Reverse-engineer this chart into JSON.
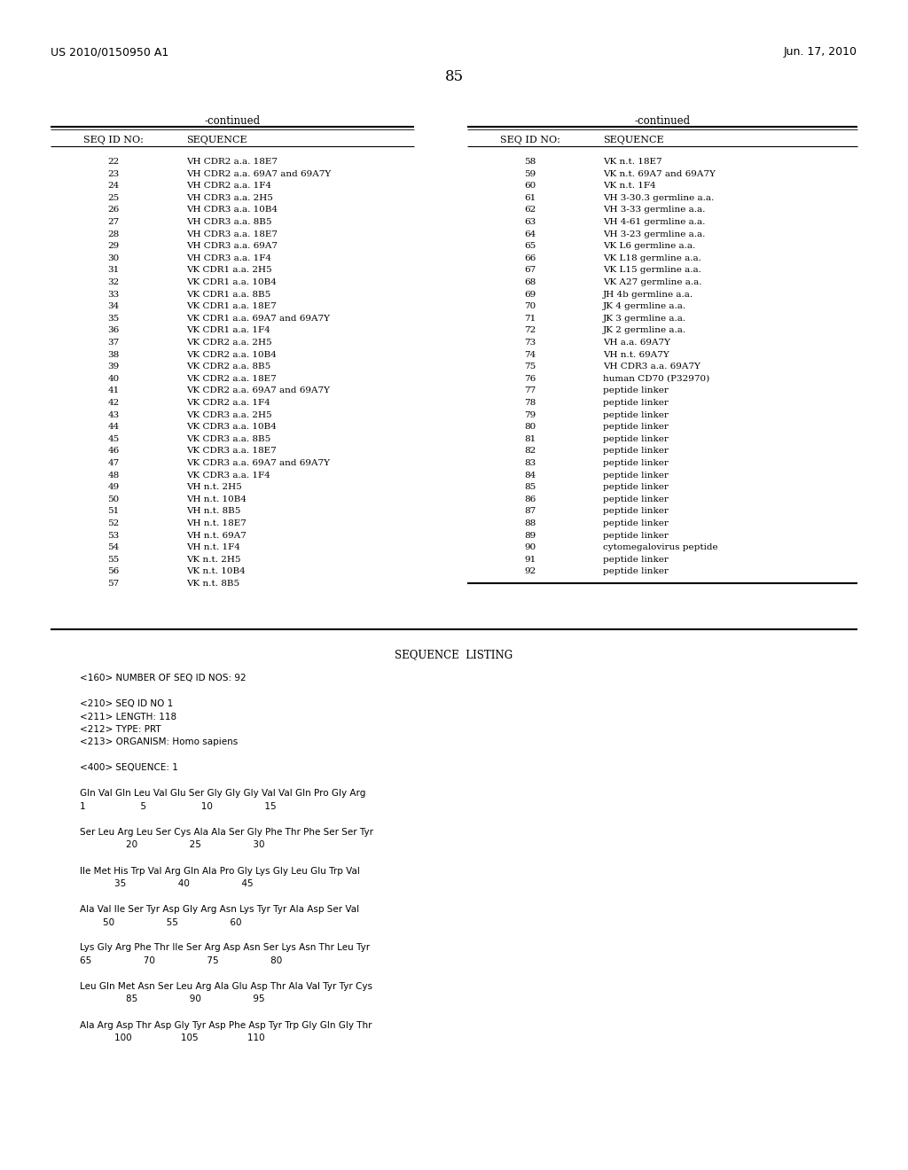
{
  "header_left": "US 2010/0150950 A1",
  "header_right": "Jun. 17, 2010",
  "page_number": "85",
  "continued_label": "-continued",
  "col1_header_id": "SEQ ID NO:",
  "col1_header_seq": "SEQUENCE",
  "col2_header_id": "SEQ ID NO:",
  "col2_header_seq": "SEQUENCE",
  "left_table": [
    [
      "22",
      "VH CDR2 a.a. 18E7"
    ],
    [
      "23",
      "VH CDR2 a.a. 69A7 and 69A7Y"
    ],
    [
      "24",
      "VH CDR2 a.a. 1F4"
    ],
    [
      "25",
      "VH CDR3 a.a. 2H5"
    ],
    [
      "26",
      "VH CDR3 a.a. 10B4"
    ],
    [
      "27",
      "VH CDR3 a.a. 8B5"
    ],
    [
      "28",
      "VH CDR3 a.a. 18E7"
    ],
    [
      "29",
      "VH CDR3 a.a. 69A7"
    ],
    [
      "30",
      "VH CDR3 a.a. 1F4"
    ],
    [
      "31",
      "VK CDR1 a.a. 2H5"
    ],
    [
      "32",
      "VK CDR1 a.a. 10B4"
    ],
    [
      "33",
      "VK CDR1 a.a. 8B5"
    ],
    [
      "34",
      "VK CDR1 a.a. 18E7"
    ],
    [
      "35",
      "VK CDR1 a.a. 69A7 and 69A7Y"
    ],
    [
      "36",
      "VK CDR1 a.a. 1F4"
    ],
    [
      "37",
      "VK CDR2 a.a. 2H5"
    ],
    [
      "38",
      "VK CDR2 a.a. 10B4"
    ],
    [
      "39",
      "VK CDR2 a.a. 8B5"
    ],
    [
      "40",
      "VK CDR2 a.a. 18E7"
    ],
    [
      "41",
      "VK CDR2 a.a. 69A7 and 69A7Y"
    ],
    [
      "42",
      "VK CDR2 a.a. 1F4"
    ],
    [
      "43",
      "VK CDR3 a.a. 2H5"
    ],
    [
      "44",
      "VK CDR3 a.a. 10B4"
    ],
    [
      "45",
      "VK CDR3 a.a. 8B5"
    ],
    [
      "46",
      "VK CDR3 a.a. 18E7"
    ],
    [
      "47",
      "VK CDR3 a.a. 69A7 and 69A7Y"
    ],
    [
      "48",
      "VK CDR3 a.a. 1F4"
    ],
    [
      "49",
      "VH n.t. 2H5"
    ],
    [
      "50",
      "VH n.t. 10B4"
    ],
    [
      "51",
      "VH n.t. 8B5"
    ],
    [
      "52",
      "VH n.t. 18E7"
    ],
    [
      "53",
      "VH n.t. 69A7"
    ],
    [
      "54",
      "VH n.t. 1F4"
    ],
    [
      "55",
      "VK n.t. 2H5"
    ],
    [
      "56",
      "VK n.t. 10B4"
    ],
    [
      "57",
      "VK n.t. 8B5"
    ]
  ],
  "right_table": [
    [
      "58",
      "VK n.t. 18E7"
    ],
    [
      "59",
      "VK n.t. 69A7 and 69A7Y"
    ],
    [
      "60",
      "VK n.t. 1F4"
    ],
    [
      "61",
      "VH 3-30.3 germline a.a."
    ],
    [
      "62",
      "VH 3-33 germline a.a."
    ],
    [
      "63",
      "VH 4-61 germline a.a."
    ],
    [
      "64",
      "VH 3-23 germline a.a."
    ],
    [
      "65",
      "VK L6 germline a.a."
    ],
    [
      "66",
      "VK L18 germline a.a."
    ],
    [
      "67",
      "VK L15 germline a.a."
    ],
    [
      "68",
      "VK A27 germline a.a."
    ],
    [
      "69",
      "JH 4b germline a.a."
    ],
    [
      "70",
      "JK 4 germline a.a."
    ],
    [
      "71",
      "JK 3 germline a.a."
    ],
    [
      "72",
      "JK 2 germline a.a."
    ],
    [
      "73",
      "VH a.a. 69A7Y"
    ],
    [
      "74",
      "VH n.t. 69A7Y"
    ],
    [
      "75",
      "VH CDR3 a.a. 69A7Y"
    ],
    [
      "76",
      "human CD70 (P32970)"
    ],
    [
      "77",
      "peptide linker"
    ],
    [
      "78",
      "peptide linker"
    ],
    [
      "79",
      "peptide linker"
    ],
    [
      "80",
      "peptide linker"
    ],
    [
      "81",
      "peptide linker"
    ],
    [
      "82",
      "peptide linker"
    ],
    [
      "83",
      "peptide linker"
    ],
    [
      "84",
      "peptide linker"
    ],
    [
      "85",
      "peptide linker"
    ],
    [
      "86",
      "peptide linker"
    ],
    [
      "87",
      "peptide linker"
    ],
    [
      "88",
      "peptide linker"
    ],
    [
      "89",
      "peptide linker"
    ],
    [
      "90",
      "cytomegalovirus peptide"
    ],
    [
      "91",
      "peptide linker"
    ],
    [
      "92",
      "peptide linker"
    ]
  ],
  "sequence_listing_title": "SEQUENCE  LISTING",
  "seq_listing_lines": [
    [
      "mono",
      "<160> NUMBER OF SEQ ID NOS: 92"
    ],
    [
      "blank",
      ""
    ],
    [
      "mono",
      "<210> SEQ ID NO 1"
    ],
    [
      "mono",
      "<211> LENGTH: 118"
    ],
    [
      "mono",
      "<212> TYPE: PRT"
    ],
    [
      "mono",
      "<213> ORGANISM: Homo sapiens"
    ],
    [
      "blank",
      ""
    ],
    [
      "mono",
      "<400> SEQUENCE: 1"
    ],
    [
      "blank",
      ""
    ],
    [
      "seq",
      "Gln Val Gln Leu Val Glu Ser Gly Gly Gly Val Val Gln Pro Gly Arg"
    ],
    [
      "num",
      "1                   5                   10                  15"
    ],
    [
      "blank",
      ""
    ],
    [
      "seq",
      "Ser Leu Arg Leu Ser Cys Ala Ala Ser Gly Phe Thr Phe Ser Ser Tyr"
    ],
    [
      "num",
      "                20                  25                  30"
    ],
    [
      "blank",
      ""
    ],
    [
      "seq",
      "Ile Met His Trp Val Arg Gln Ala Pro Gly Lys Gly Leu Glu Trp Val"
    ],
    [
      "num",
      "            35                  40                  45"
    ],
    [
      "blank",
      ""
    ],
    [
      "seq",
      "Ala Val Ile Ser Tyr Asp Gly Arg Asn Lys Tyr Tyr Ala Asp Ser Val"
    ],
    [
      "num",
      "        50                  55                  60"
    ],
    [
      "blank",
      ""
    ],
    [
      "seq",
      "Lys Gly Arg Phe Thr Ile Ser Arg Asp Asn Ser Lys Asn Thr Leu Tyr"
    ],
    [
      "num",
      "65                  70                  75                  80"
    ],
    [
      "blank",
      ""
    ],
    [
      "seq",
      "Leu Gln Met Asn Ser Leu Arg Ala Glu Asp Thr Ala Val Tyr Tyr Cys"
    ],
    [
      "num",
      "                85                  90                  95"
    ],
    [
      "blank",
      ""
    ],
    [
      "seq",
      "Ala Arg Asp Thr Asp Gly Tyr Asp Phe Asp Tyr Trp Gly Gln Gly Thr"
    ],
    [
      "num",
      "            100                 105                 110"
    ]
  ],
  "background_color": "#ffffff",
  "text_color": "#000000"
}
